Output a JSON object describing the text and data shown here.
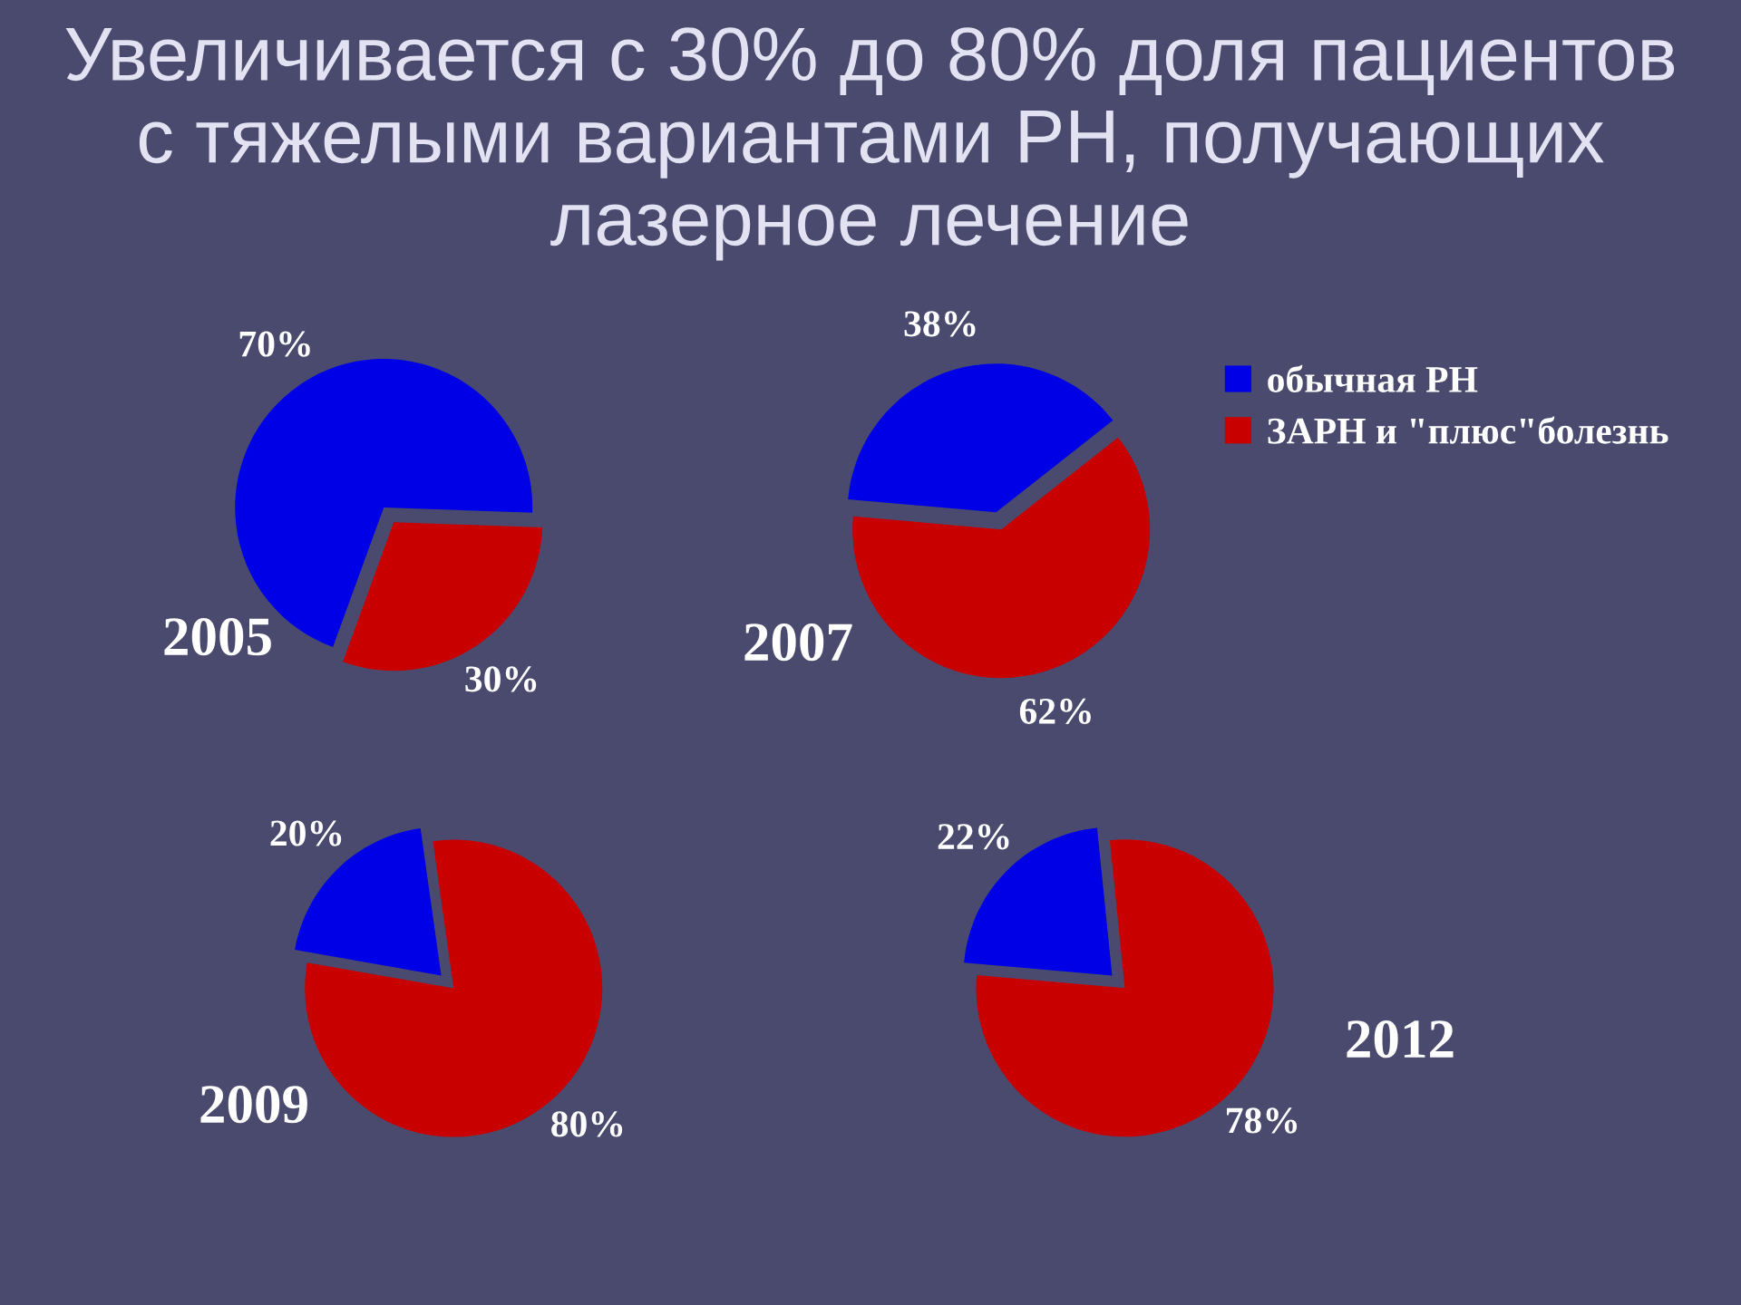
{
  "chart_data": [
    {
      "type": "pie",
      "title": "Увеличивается с 30% до 80% доля пациентов\nс тяжелыми вариантами РН, получающих\nлазерное лечение",
      "categories": [
        "обычная РН",
        "ЗАРН и \"плюс\"болезнь"
      ],
      "values": [
        70,
        30
      ],
      "colors": [
        "#0000e6",
        "#c80000"
      ],
      "value_labels": [
        "70%",
        "30%"
      ],
      "annotations": [
        "2005"
      ],
      "legend": "top right"
    },
    {
      "type": "pie",
      "categories": [
        null,
        null
      ],
      "values": [
        38,
        62
      ],
      "colors": [
        "#0000e6",
        "#c80000"
      ],
      "value_labels": [
        "38%",
        "62%"
      ],
      "annotations": [
        "2007"
      ]
    },
    {
      "type": "pie",
      "categories": [
        null,
        null
      ],
      "values": [
        20,
        80
      ],
      "colors": [
        "#0000e6",
        "#c80000"
      ],
      "value_labels": [
        "20%",
        "80%"
      ],
      "annotations": [
        "2009"
      ]
    },
    {
      "type": "pie",
      "categories": [
        null,
        null
      ],
      "values": [
        22,
        78
      ],
      "colors": [
        "#0000e6",
        "#c80000"
      ],
      "value_labels": [
        "22%",
        "78%"
      ],
      "annotations": [
        "2012"
      ]
    }
  ]
}
